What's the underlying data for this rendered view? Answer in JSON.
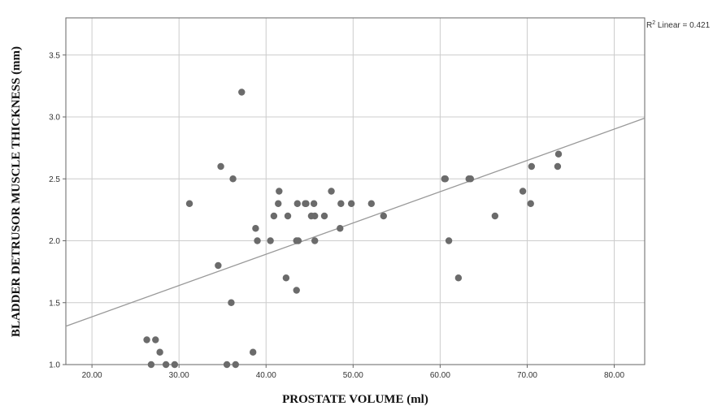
{
  "chart_data": {
    "type": "scatter",
    "title": "",
    "xlabel": "PROSTATE VOLUME (ml)",
    "ylabel": "BLADDER DETRUSOR MUSCLE THICKNESS (mm)",
    "xlim": [
      17,
      83.5
    ],
    "ylim": [
      1.0,
      3.8
    ],
    "x_ticks": [
      20,
      30,
      40,
      50,
      60,
      70,
      80
    ],
    "x_tick_labels": [
      "20.00",
      "30.00",
      "40.00",
      "50.00",
      "60.00",
      "70.00",
      "80.00"
    ],
    "y_ticks": [
      1.0,
      1.5,
      2.0,
      2.5,
      3.0,
      3.5
    ],
    "y_tick_labels": [
      "1.0",
      "1.5",
      "2.0",
      "2.5",
      "3.0",
      "3.5"
    ],
    "grid": true,
    "annotation": {
      "prefix": "R",
      "sup": "2",
      "suffix": " Linear = 0.421"
    },
    "fit_line": {
      "x": [
        17,
        83.5
      ],
      "y": [
        1.31,
        2.99
      ]
    },
    "points_color": "#6b6b6b",
    "line_color": "#999999",
    "points": [
      [
        26.3,
        1.2
      ],
      [
        26.8,
        1.0
      ],
      [
        27.3,
        1.2
      ],
      [
        27.8,
        1.1
      ],
      [
        28.5,
        1.0
      ],
      [
        29.5,
        1.0
      ],
      [
        31.2,
        2.3
      ],
      [
        34.5,
        1.8
      ],
      [
        34.8,
        2.6
      ],
      [
        35.5,
        1.0
      ],
      [
        36.0,
        1.5
      ],
      [
        36.2,
        2.5
      ],
      [
        36.5,
        1.0
      ],
      [
        37.2,
        3.2
      ],
      [
        38.5,
        1.1
      ],
      [
        38.8,
        2.1
      ],
      [
        39.0,
        2.0
      ],
      [
        40.5,
        2.0
      ],
      [
        40.9,
        2.2
      ],
      [
        41.4,
        2.3
      ],
      [
        41.5,
        2.4
      ],
      [
        42.3,
        1.7
      ],
      [
        42.5,
        2.2
      ],
      [
        43.5,
        1.6
      ],
      [
        43.5,
        2.0
      ],
      [
        43.6,
        2.3
      ],
      [
        43.7,
        2.0
      ],
      [
        44.5,
        2.3
      ],
      [
        44.6,
        2.3
      ],
      [
        45.2,
        2.2
      ],
      [
        45.5,
        2.3
      ],
      [
        45.6,
        2.0
      ],
      [
        45.6,
        2.2
      ],
      [
        46.7,
        2.2
      ],
      [
        47.5,
        2.4
      ],
      [
        48.5,
        2.1
      ],
      [
        48.6,
        2.3
      ],
      [
        49.8,
        2.3
      ],
      [
        52.1,
        2.3
      ],
      [
        53.5,
        2.2
      ],
      [
        60.5,
        2.5
      ],
      [
        60.6,
        2.5
      ],
      [
        61.0,
        2.0
      ],
      [
        62.1,
        1.7
      ],
      [
        63.3,
        2.5
      ],
      [
        63.5,
        2.5
      ],
      [
        66.3,
        2.2
      ],
      [
        69.5,
        2.4
      ],
      [
        70.4,
        2.3
      ],
      [
        70.5,
        2.6
      ],
      [
        73.5,
        2.6
      ],
      [
        73.6,
        2.7
      ]
    ]
  }
}
